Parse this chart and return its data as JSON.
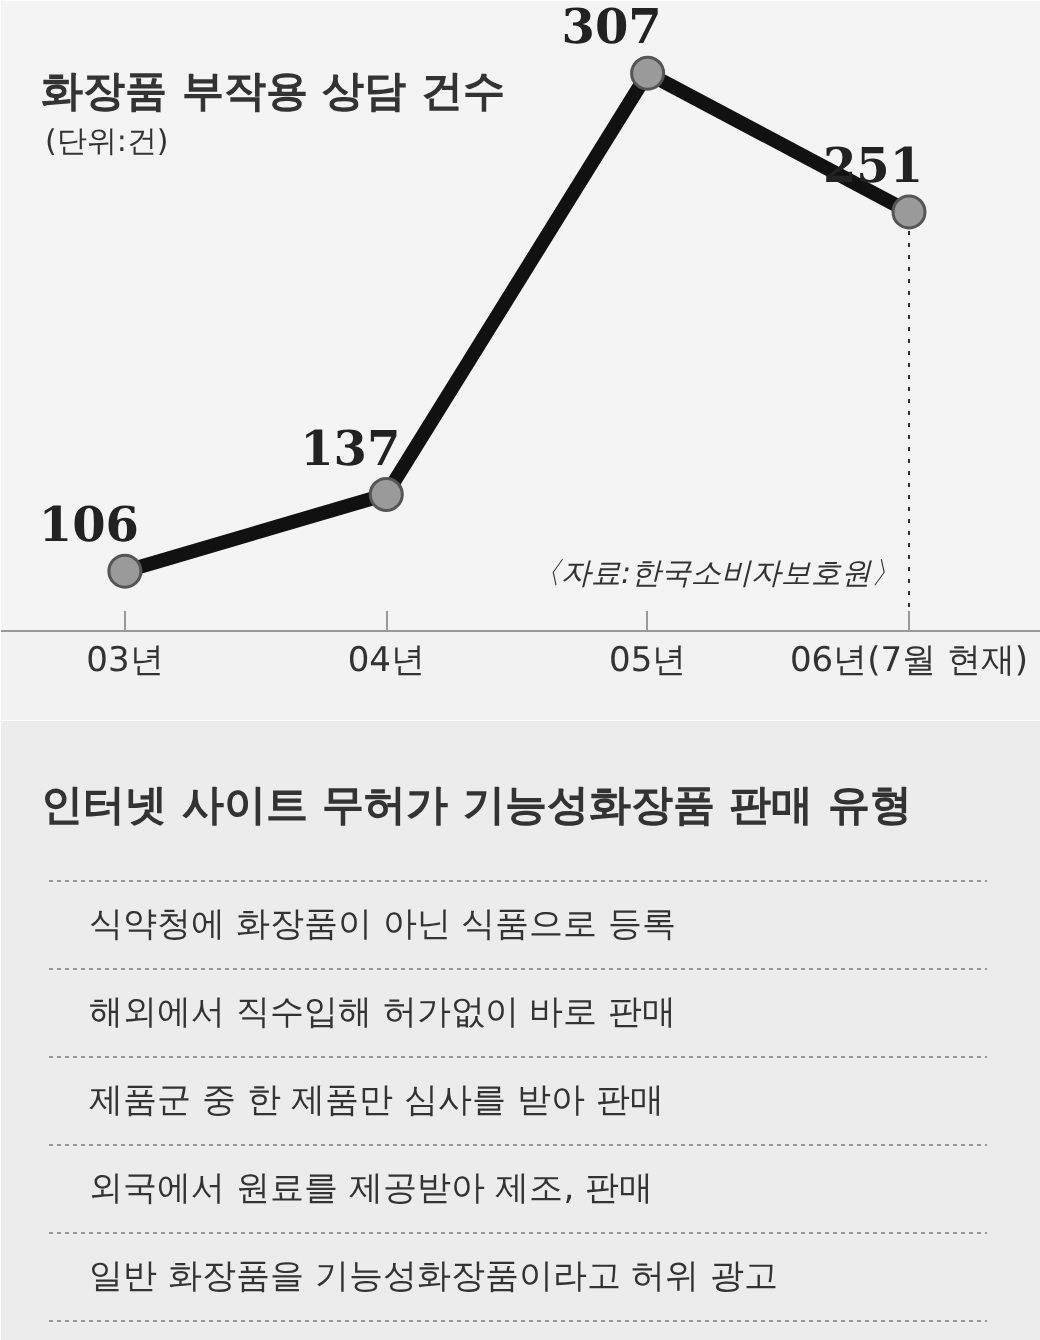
{
  "chart_data": [
    {
      "type": "line",
      "title": "화장품 부작용 상담 건수",
      "subtitle": "(단위:건)",
      "categories": [
        "03년",
        "04년",
        "05년",
        "06년(7월 현재)"
      ],
      "values": [
        106,
        137,
        307,
        251
      ],
      "color": "#111111",
      "marker": "circle",
      "data_labels": true,
      "annotations": [
        "〈자료:한국소비자보호원〉"
      ],
      "ref_lines": [
        {
          "axis": "x",
          "value": "06년(7월 현재)",
          "line_style": "dotted",
          "color": "#333333"
        }
      ]
    },
    {
      "type": "other",
      "title": "인터넷 사이트 무허가 기능성화장품 판매 유형",
      "annotations": [
        "식약청에 화장품이 아닌 식품으로 등록",
        "해외에서 직수입해 허가없이 바로 판매",
        "제품군 중 한 제품만 심사를 받아 판매",
        "외국에서 원료를 제공받아 제조, 판매",
        "일반 화장품을 기능성화장품이라고 허위 광고"
      ]
    }
  ]
}
